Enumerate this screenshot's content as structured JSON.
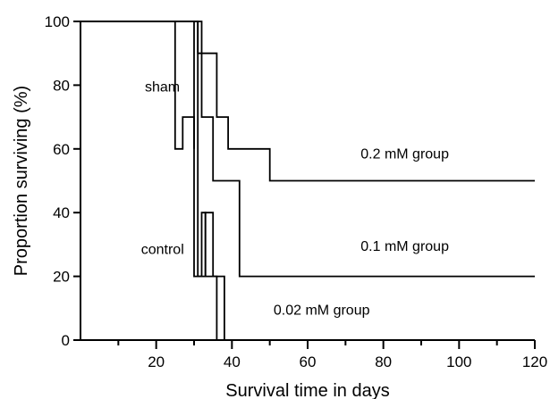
{
  "chart_data": {
    "type": "line",
    "title": "",
    "xlabel": "Survival time in days",
    "ylabel": "Proportion surviving (%)",
    "xlim": [
      0,
      120
    ],
    "ylim": [
      0,
      100
    ],
    "x_ticks": [
      20,
      40,
      60,
      80,
      100,
      120
    ],
    "y_ticks": [
      0,
      20,
      40,
      60,
      80,
      100
    ],
    "grid": false,
    "series": [
      {
        "name": "sham",
        "x": [
          0,
          25,
          25,
          27,
          27,
          30,
          30,
          120
        ],
        "y": [
          100,
          100,
          60,
          60,
          70,
          70,
          60,
          60
        ],
        "visible_until": 30
      },
      {
        "name": "control",
        "x": [
          0,
          30,
          30,
          32,
          32,
          33,
          33,
          36,
          36
        ],
        "y": [
          100,
          100,
          20,
          20,
          40,
          40,
          20,
          20,
          0
        ]
      },
      {
        "name": "0.02 mM group",
        "x": [
          0,
          31,
          31,
          33,
          33,
          35,
          35,
          38,
          38
        ],
        "y": [
          100,
          100,
          20,
          20,
          40,
          40,
          20,
          20,
          0
        ]
      },
      {
        "name": "0.1 mM group",
        "x": [
          0,
          32,
          32,
          35,
          35,
          42,
          42,
          120
        ],
        "y": [
          100,
          100,
          70,
          70,
          50,
          50,
          20,
          20
        ]
      },
      {
        "name": "0.2 mM group",
        "x": [
          0,
          31,
          31,
          36,
          36,
          39,
          39,
          44,
          44,
          50,
          50,
          120
        ],
        "y": [
          100,
          100,
          90,
          90,
          70,
          70,
          60,
          60,
          60,
          60,
          50,
          50
        ]
      }
    ],
    "annotations": [
      {
        "text": "sham",
        "x": 17,
        "y": 78
      },
      {
        "text": "control",
        "x": 16,
        "y": 27
      },
      {
        "text": "0.2 mM group",
        "x": 74,
        "y": 57
      },
      {
        "text": "0.1 mM group",
        "x": 74,
        "y": 28
      },
      {
        "text": "0.02 mM group",
        "x": 51,
        "y": 8
      }
    ]
  }
}
